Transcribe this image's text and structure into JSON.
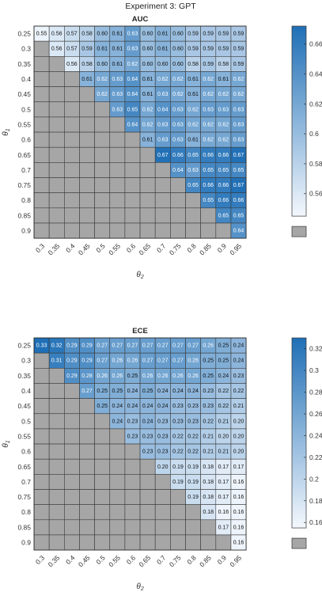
{
  "figure": {
    "title": "Experiment 3: GPT"
  },
  "colors": {
    "low": "#f4f8fd",
    "high": "#1f6fb6",
    "missing": "#a6a6a6",
    "grid": "#3a3a3a"
  },
  "chart_data": [
    {
      "type": "heatmap",
      "title": "AUC",
      "xlabel": "θ2",
      "ylabel": "θ1",
      "x_categories": [
        "0.3",
        "0.35",
        "0.4",
        "0.45",
        "0.5",
        "0.55",
        "0.6",
        "0.65",
        "0.7",
        "0.75",
        "0.8",
        "0.85",
        "0.9",
        "0.95"
      ],
      "y_categories": [
        "0.25",
        "0.3",
        "0.35",
        "0.4",
        "0.45",
        "0.5",
        "0.55",
        "0.6",
        "0.65",
        "0.7",
        "0.75",
        "0.8",
        "0.85",
        "0.9"
      ],
      "clim": [
        0.545,
        0.672
      ],
      "colorbar_ticks": [
        0.56,
        0.58,
        0.6,
        0.62,
        0.64,
        0.66
      ],
      "values": [
        [
          "0.55",
          "0.56",
          "0.57",
          "0.58",
          "0.60",
          "0.61",
          "0.63",
          "0.60",
          "0.61",
          "0.60",
          "0.59",
          "0.59",
          "0.59",
          "0.59"
        ],
        [
          null,
          "0.56",
          "0.57",
          "0.59",
          "0.61",
          "0.61",
          "0.63",
          "0.60",
          "0.61",
          "0.60",
          "0.59",
          "0.59",
          "0.59",
          "0.59"
        ],
        [
          null,
          null,
          "0.56",
          "0.58",
          "0.60",
          "0.61",
          "0.62",
          "0.60",
          "0.60",
          "0.60",
          "0.58",
          "0.59",
          "0.58",
          "0.59"
        ],
        [
          null,
          null,
          null,
          "0.61",
          "0.62",
          "0.63",
          "0.64",
          "0.61",
          "0.62",
          "0.62",
          "0.61",
          "0.62",
          "0.61",
          "0.62"
        ],
        [
          null,
          null,
          null,
          null,
          "0.62",
          "0.63",
          "0.64",
          "0.61",
          "0.63",
          "0.62",
          "0.61",
          "0.62",
          "0.62",
          "0.62"
        ],
        [
          null,
          null,
          null,
          null,
          null,
          "0.63",
          "0.65",
          "0.62",
          "0.64",
          "0.63",
          "0.62",
          "0.63",
          "0.63",
          "0.63"
        ],
        [
          null,
          null,
          null,
          null,
          null,
          null,
          "0.64",
          "0.62",
          "0.63",
          "0.63",
          "0.62",
          "0.62",
          "0.62",
          "0.63"
        ],
        [
          null,
          null,
          null,
          null,
          null,
          null,
          null,
          "0.61",
          "0.63",
          "0.63",
          "0.61",
          "0.62",
          "0.62",
          "0.63"
        ],
        [
          null,
          null,
          null,
          null,
          null,
          null,
          null,
          null,
          "0.67",
          "0.66",
          "0.65",
          "0.66",
          "0.66",
          "0.67"
        ],
        [
          null,
          null,
          null,
          null,
          null,
          null,
          null,
          null,
          null,
          "0.64",
          "0.63",
          "0.65",
          "0.65",
          "0.65"
        ],
        [
          null,
          null,
          null,
          null,
          null,
          null,
          null,
          null,
          null,
          null,
          "0.65",
          "0.66",
          "0.66",
          "0.67"
        ],
        [
          null,
          null,
          null,
          null,
          null,
          null,
          null,
          null,
          null,
          null,
          null,
          "0.65",
          "0.66",
          "0.66"
        ],
        [
          null,
          null,
          null,
          null,
          null,
          null,
          null,
          null,
          null,
          null,
          null,
          null,
          "0.65",
          "0.65"
        ],
        [
          null,
          null,
          null,
          null,
          null,
          null,
          null,
          null,
          null,
          null,
          null,
          null,
          null,
          "0.64"
        ]
      ]
    },
    {
      "type": "heatmap",
      "title": "ECE",
      "xlabel": "θ2",
      "ylabel": "θ1",
      "x_categories": [
        "0.3",
        "0.35",
        "0.4",
        "0.45",
        "0.5",
        "0.55",
        "0.6",
        "0.65",
        "0.7",
        "0.75",
        "0.8",
        "0.85",
        "0.9",
        "0.95"
      ],
      "y_categories": [
        "0.25",
        "0.3",
        "0.35",
        "0.4",
        "0.45",
        "0.5",
        "0.55",
        "0.6",
        "0.65",
        "0.7",
        "0.75",
        "0.8",
        "0.85",
        "0.9"
      ],
      "clim": [
        0.155,
        0.33
      ],
      "colorbar_ticks": [
        0.16,
        0.18,
        0.2,
        0.22,
        0.24,
        0.26,
        0.28,
        0.3,
        0.32
      ],
      "values": [
        [
          "0.33",
          "0.32",
          "0.29",
          "0.29",
          "0.27",
          "0.27",
          "0.27",
          "0.27",
          "0.27",
          "0.27",
          "0.27",
          "0.26",
          "0.25",
          "0.24"
        ],
        [
          null,
          "0.31",
          "0.29",
          "0.29",
          "0.27",
          "0.26",
          "0.26",
          "0.27",
          "0.27",
          "0.27",
          "0.26",
          "0.25",
          "0.25",
          "0.24"
        ],
        [
          null,
          null,
          "0.29",
          "0.28",
          "0.26",
          "0.26",
          "0.25",
          "0.26",
          "0.26",
          "0.26",
          "0.26",
          "0.25",
          "0.24",
          "0.23"
        ],
        [
          null,
          null,
          null,
          "0.27",
          "0.25",
          "0.25",
          "0.24",
          "0.25",
          "0.24",
          "0.24",
          "0.24",
          "0.23",
          "0.22",
          "0.22"
        ],
        [
          null,
          null,
          null,
          null,
          "0.25",
          "0.24",
          "0.24",
          "0.24",
          "0.24",
          "0.23",
          "0.23",
          "0.23",
          "0.22",
          "0.21"
        ],
        [
          null,
          null,
          null,
          null,
          null,
          "0.24",
          "0.23",
          "0.24",
          "0.23",
          "0.23",
          "0.23",
          "0.22",
          "0.21",
          "0.20"
        ],
        [
          null,
          null,
          null,
          null,
          null,
          null,
          "0.23",
          "0.23",
          "0.23",
          "0.22",
          "0.22",
          "0.21",
          "0.20",
          "0.20"
        ],
        [
          null,
          null,
          null,
          null,
          null,
          null,
          null,
          "0.23",
          "0.23",
          "0.22",
          "0.22",
          "0.21",
          "0.21",
          "0.20"
        ],
        [
          null,
          null,
          null,
          null,
          null,
          null,
          null,
          null,
          "0.20",
          "0.19",
          "0.19",
          "0.18",
          "0.17",
          "0.17"
        ],
        [
          null,
          null,
          null,
          null,
          null,
          null,
          null,
          null,
          null,
          "0.19",
          "0.19",
          "0.18",
          "0.17",
          "0.16"
        ],
        [
          null,
          null,
          null,
          null,
          null,
          null,
          null,
          null,
          null,
          null,
          "0.19",
          "0.18",
          "0.17",
          "0.16"
        ],
        [
          null,
          null,
          null,
          null,
          null,
          null,
          null,
          null,
          null,
          null,
          null,
          "0.18",
          "0.16",
          "0.16"
        ],
        [
          null,
          null,
          null,
          null,
          null,
          null,
          null,
          null,
          null,
          null,
          null,
          null,
          "0.17",
          "0.16"
        ],
        [
          null,
          null,
          null,
          null,
          null,
          null,
          null,
          null,
          null,
          null,
          null,
          null,
          null,
          "0.16"
        ]
      ]
    }
  ]
}
